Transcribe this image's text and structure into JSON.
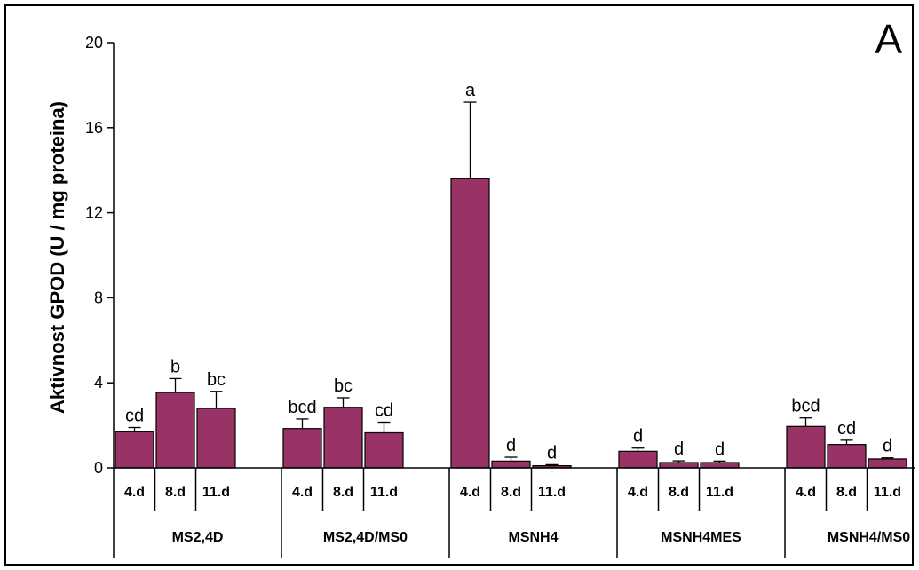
{
  "chart_data": {
    "type": "bar",
    "panel_label": "A",
    "ylabel": "Aktivnost GPOD (U / mg proteina)",
    "xlabel": "",
    "ylim": [
      0,
      20
    ],
    "yticks": [
      0,
      4,
      8,
      12,
      16,
      20
    ],
    "grid": false,
    "bar_color": "#993366",
    "groups": [
      {
        "name": "MS2,4D",
        "bars": [
          {
            "label": "4.d",
            "value": 1.7,
            "error": 0.2,
            "letter": "cd"
          },
          {
            "label": "8.d",
            "value": 3.55,
            "error": 0.65,
            "letter": "b"
          },
          {
            "label": "11.d",
            "value": 2.8,
            "error": 0.8,
            "letter": "bc"
          }
        ]
      },
      {
        "name": "MS2,4D/MS0",
        "bars": [
          {
            "label": "4.d",
            "value": 1.85,
            "error": 0.45,
            "letter": "bcd"
          },
          {
            "label": "8.d",
            "value": 2.85,
            "error": 0.45,
            "letter": "bc"
          },
          {
            "label": "11.d",
            "value": 1.65,
            "error": 0.5,
            "letter": "cd"
          }
        ]
      },
      {
        "name": "MSNH4",
        "bars": [
          {
            "label": "4.d",
            "value": 13.6,
            "error": 3.6,
            "letter": "a"
          },
          {
            "label": "8.d",
            "value": 0.32,
            "error": 0.18,
            "letter": "d"
          },
          {
            "label": "11.d",
            "value": 0.1,
            "error": 0.05,
            "letter": "d"
          }
        ]
      },
      {
        "name": "MSNH4MES",
        "bars": [
          {
            "label": "4.d",
            "value": 0.78,
            "error": 0.15,
            "letter": "d"
          },
          {
            "label": "8.d",
            "value": 0.25,
            "error": 0.08,
            "letter": "d"
          },
          {
            "label": "11.d",
            "value": 0.25,
            "error": 0.07,
            "letter": "d"
          }
        ]
      },
      {
        "name": "MSNH4/MS0",
        "bars": [
          {
            "label": "4.d",
            "value": 1.95,
            "error": 0.4,
            "letter": "bcd"
          },
          {
            "label": "8.d",
            "value": 1.1,
            "error": 0.2,
            "letter": "cd"
          },
          {
            "label": "11.d",
            "value": 0.42,
            "error": 0.05,
            "letter": "d"
          }
        ]
      }
    ]
  }
}
